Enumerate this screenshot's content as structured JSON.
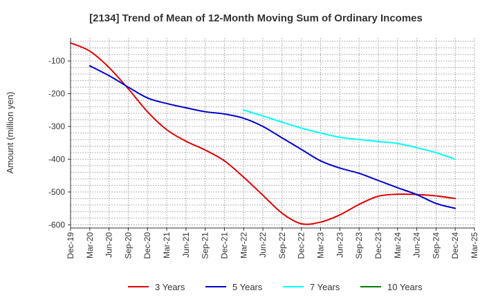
{
  "chart_data": {
    "type": "line",
    "title": "[2134]  Trend of Mean of 12-Month Moving Sum of Ordinary Incomes",
    "xlabel": "",
    "ylabel": "Amount (million yen)",
    "ylim": [
      -610,
      -30
    ],
    "yticks": [
      -100,
      -200,
      -300,
      -400,
      -500,
      -600
    ],
    "grid": true,
    "legend_position": "bottom",
    "categories": [
      "Dec-19",
      "Mar-20",
      "Jun-20",
      "Sep-20",
      "Dec-20",
      "Mar-21",
      "Jun-21",
      "Sep-21",
      "Dec-21",
      "Mar-22",
      "Jun-22",
      "Sep-22",
      "Dec-22",
      "Mar-23",
      "Jun-23",
      "Sep-23",
      "Dec-23",
      "Mar-24",
      "Jun-24",
      "Sep-24",
      "Dec-24",
      "Mar-25"
    ],
    "series": [
      {
        "name": "3 Years",
        "color": "#dd0000",
        "values": [
          -45,
          -70,
          -120,
          -185,
          -255,
          -310,
          -345,
          -372,
          -405,
          -455,
          -510,
          -565,
          -597,
          -592,
          -570,
          -538,
          -513,
          -507,
          -508,
          -512,
          -520,
          null
        ]
      },
      {
        "name": "5 Years",
        "color": "#0000cc",
        "values": [
          null,
          -115,
          -145,
          -180,
          -213,
          -230,
          -243,
          -255,
          -262,
          -275,
          -300,
          -335,
          -370,
          -405,
          -427,
          -443,
          -465,
          -487,
          -508,
          -535,
          -550,
          null
        ]
      },
      {
        "name": "7 Years",
        "color": "#00ffff",
        "values": [
          null,
          null,
          null,
          null,
          null,
          null,
          null,
          null,
          null,
          -250,
          -268,
          -287,
          -305,
          -320,
          -333,
          -340,
          -346,
          -352,
          -365,
          -380,
          -400,
          null
        ]
      },
      {
        "name": "10 Years",
        "color": "#008000",
        "values": [
          null,
          null,
          null,
          null,
          null,
          null,
          null,
          null,
          null,
          null,
          null,
          null,
          null,
          null,
          null,
          null,
          null,
          null,
          null,
          null,
          null,
          null
        ]
      }
    ]
  }
}
